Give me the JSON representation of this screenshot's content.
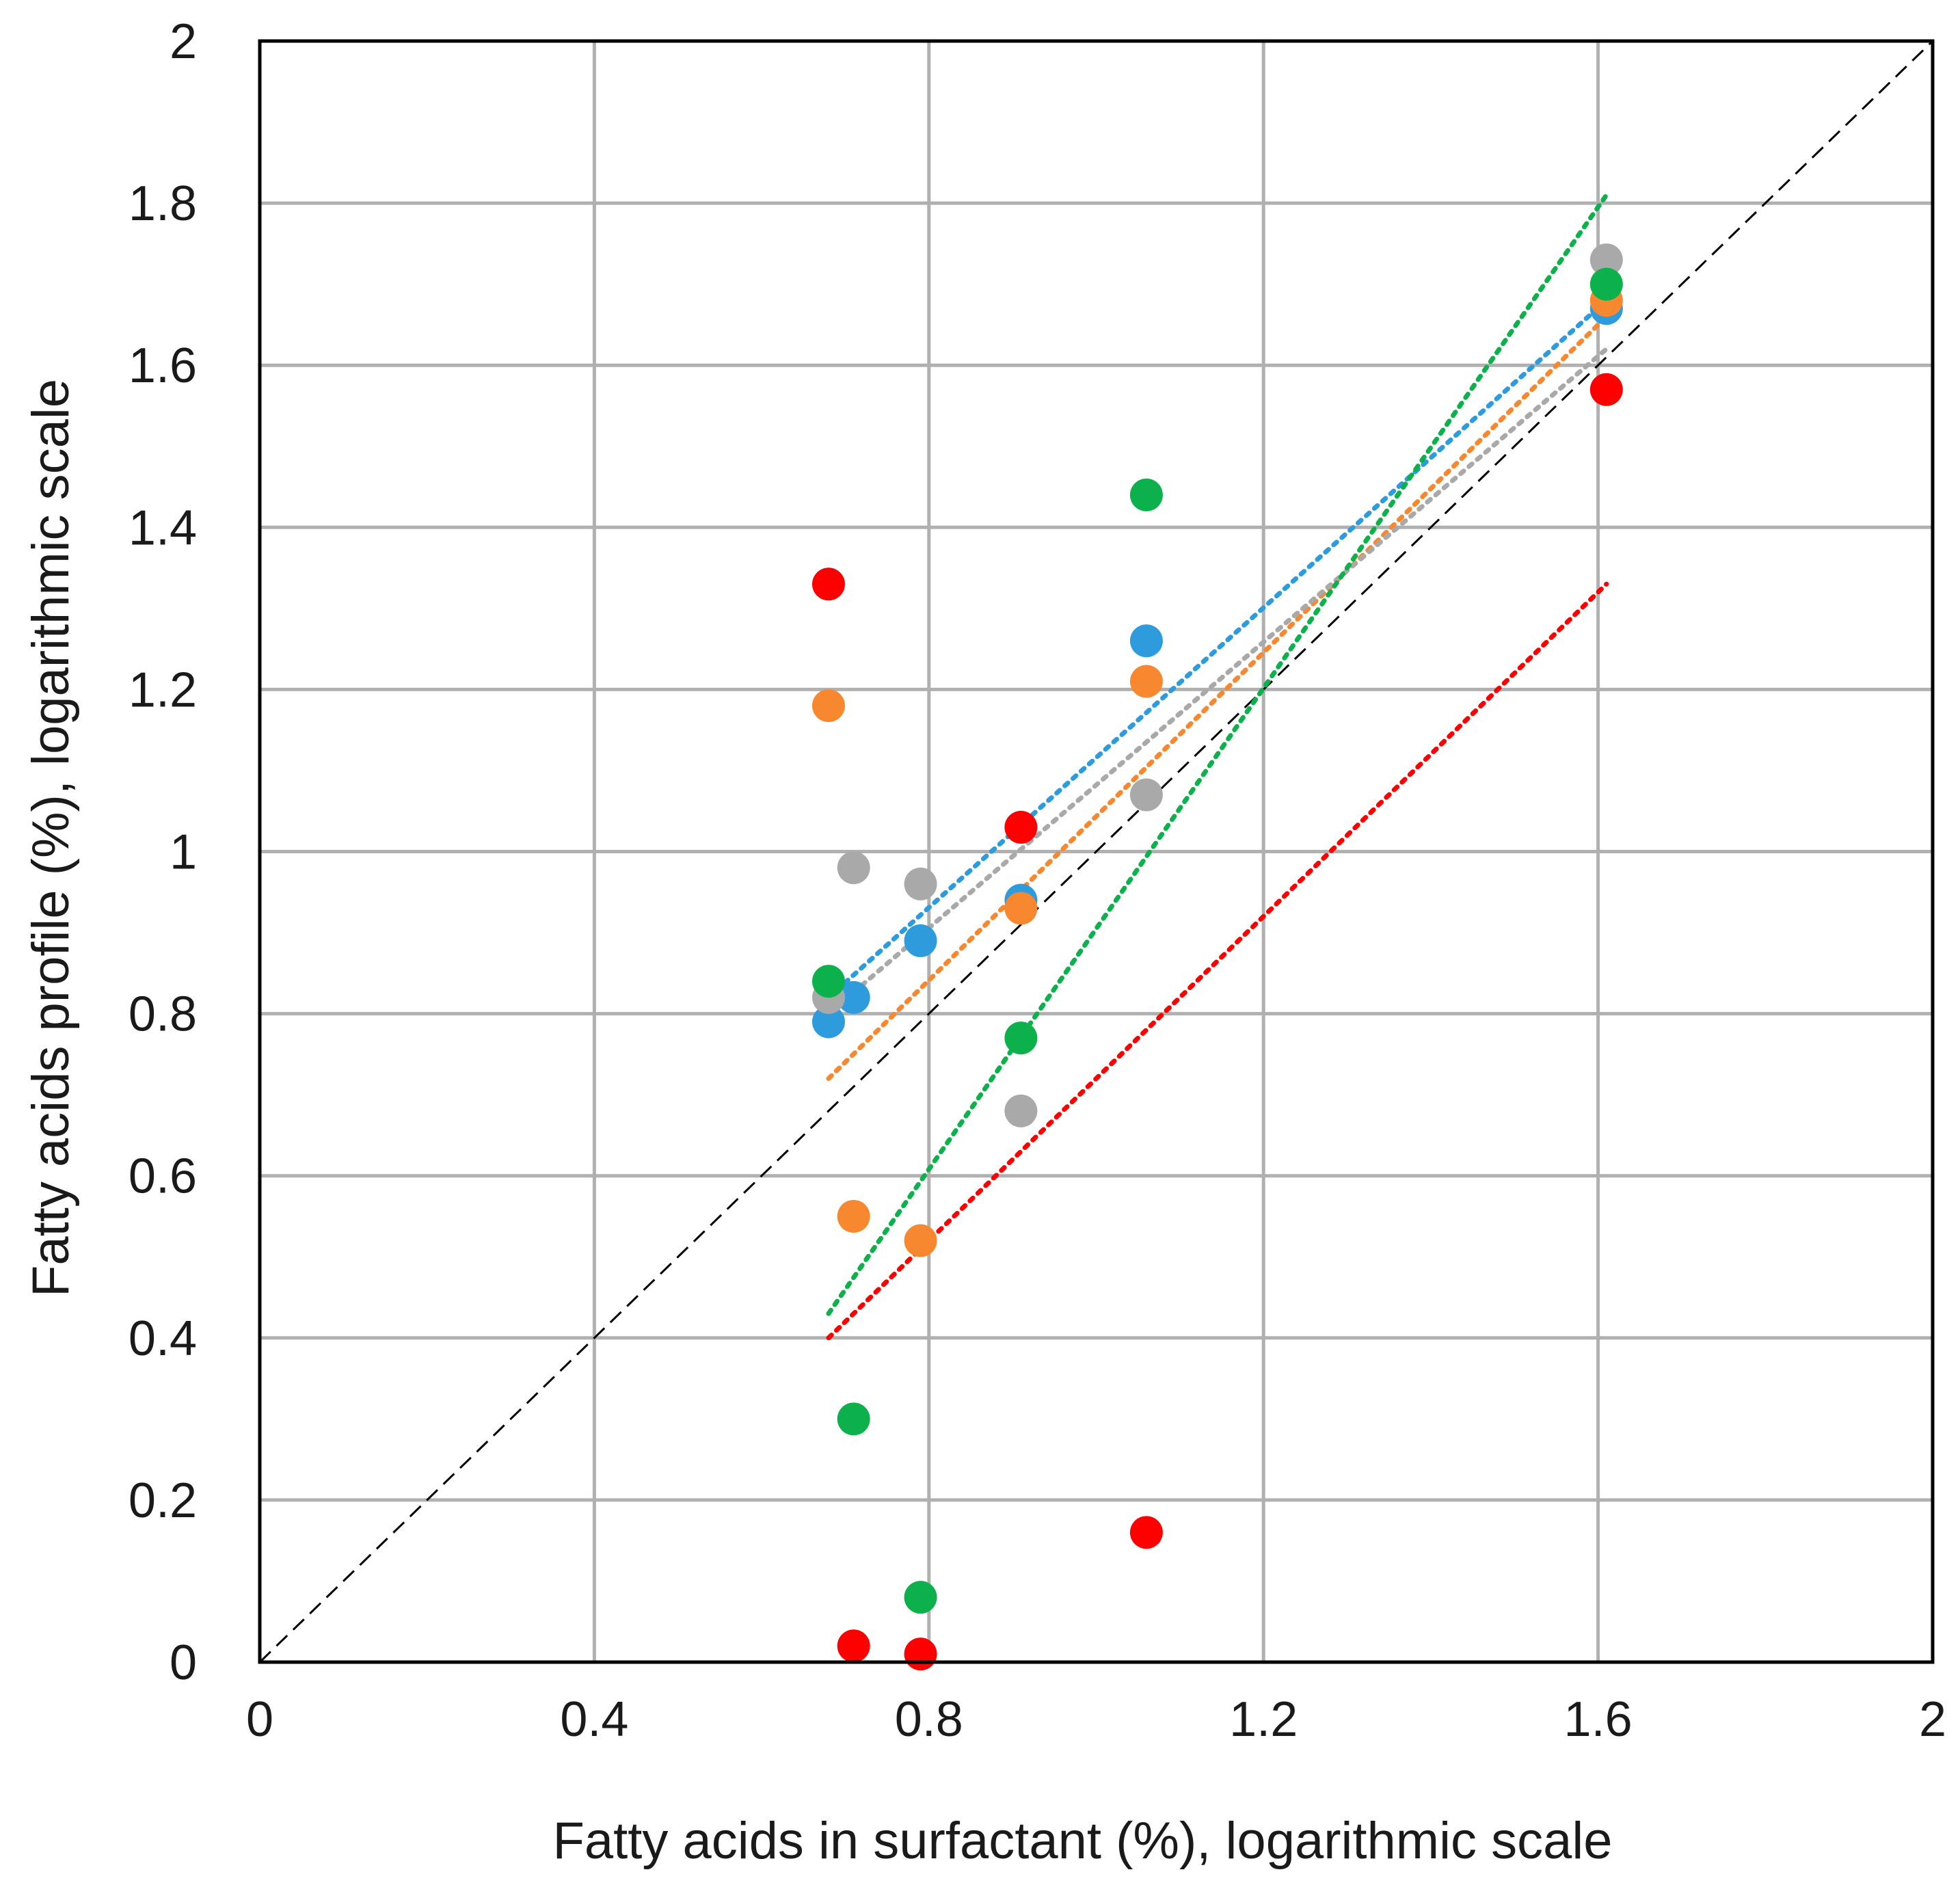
{
  "chart_data": {
    "type": "scatter",
    "title": "",
    "xlabel": "Fatty acids in surfactant (%), logarithmic scale",
    "ylabel": "Fatty acids profile (%), logarithmic scale",
    "xlim": [
      0,
      2
    ],
    "ylim": [
      0,
      2
    ],
    "x_ticks": [
      0,
      0.4,
      0.8,
      1.2,
      1.6,
      2
    ],
    "x_tick_labels": [
      "0",
      "0.4",
      "0.8",
      "1.2",
      "1.6",
      "2"
    ],
    "y_ticks": [
      0,
      0.2,
      0.4,
      0.6,
      0.8,
      1,
      1.2,
      1.4,
      1.6,
      1.8,
      2
    ],
    "y_tick_labels": [
      "0",
      "0.2",
      "0.4",
      "0.6",
      "0.8",
      "1",
      "1.2",
      "1.4",
      "1.6",
      "1.8",
      "2"
    ],
    "grid": true,
    "legend": "none",
    "reference_line": {
      "type": "identity",
      "x": [
        0,
        2
      ],
      "y": [
        0,
        2
      ],
      "color": "#000000",
      "style": "dashed"
    },
    "series": [
      {
        "name": "blue",
        "color": "#2E9BDC",
        "x": [
          0.68,
          0.71,
          0.79,
          0.91,
          1.06,
          1.61
        ],
        "y": [
          0.79,
          0.82,
          0.89,
          0.94,
          1.26,
          1.67
        ],
        "trendline": {
          "x": [
            0.68,
            1.61
          ],
          "y": [
            0.82,
            1.68
          ]
        }
      },
      {
        "name": "orange",
        "color": "#F7882F",
        "x": [
          0.68,
          0.71,
          0.79,
          0.91,
          1.06,
          1.61
        ],
        "y": [
          1.18,
          0.55,
          0.52,
          0.93,
          1.21,
          1.68
        ],
        "trendline": {
          "x": [
            0.68,
            1.61
          ],
          "y": [
            0.72,
            1.66
          ]
        }
      },
      {
        "name": "gray",
        "color": "#A9A9A9",
        "x": [
          0.68,
          0.71,
          0.79,
          0.91,
          1.06,
          1.61
        ],
        "y": [
          0.82,
          0.98,
          0.96,
          0.68,
          1.07,
          1.73
        ],
        "trendline": {
          "x": [
            0.68,
            1.61
          ],
          "y": [
            0.8,
            1.62
          ]
        }
      },
      {
        "name": "green",
        "color": "#0DB14B",
        "x": [
          0.68,
          0.71,
          0.79,
          0.91,
          1.06,
          1.61
        ],
        "y": [
          0.84,
          0.3,
          0.08,
          0.77,
          1.44,
          1.7
        ],
        "trendline": {
          "x": [
            0.68,
            1.61
          ],
          "y": [
            0.43,
            1.81
          ]
        }
      },
      {
        "name": "red",
        "color": "#FF0000",
        "x": [
          0.68,
          0.71,
          0.79,
          0.91,
          1.06,
          1.61
        ],
        "y": [
          1.33,
          0.02,
          0.01,
          1.03,
          0.16,
          1.57
        ],
        "trendline": {
          "x": [
            0.68,
            1.61
          ],
          "y": [
            0.4,
            1.33
          ]
        }
      }
    ]
  }
}
